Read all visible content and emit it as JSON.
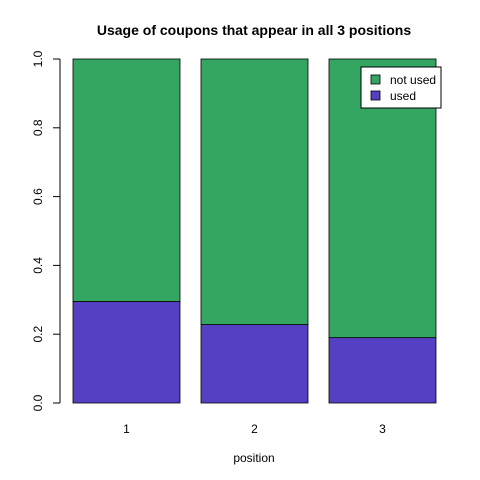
{
  "chart_data": {
    "type": "bar",
    "stacked": true,
    "title": "Usage of coupons that appear in all 3 positions",
    "xlabel": "position",
    "ylabel": "",
    "categories": [
      "1",
      "2",
      "3"
    ],
    "ylim": [
      0,
      1
    ],
    "yticks": [
      "0.0",
      "0.2",
      "0.4",
      "0.6",
      "0.8",
      "1.0"
    ],
    "series": [
      {
        "name": "used",
        "values": [
          0.295,
          0.228,
          0.19
        ],
        "color": "#5540c4"
      },
      {
        "name": "not used",
        "values": [
          0.705,
          0.772,
          0.81
        ],
        "color": "#34a662"
      }
    ],
    "legend": {
      "position": "top-right",
      "items": [
        {
          "label": "not used",
          "color": "#34a662"
        },
        {
          "label": "used",
          "color": "#5540c4"
        }
      ]
    },
    "grid": false
  }
}
